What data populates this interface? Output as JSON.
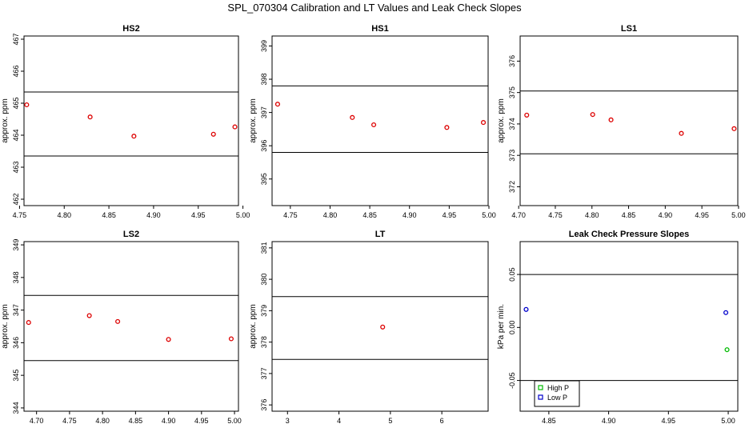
{
  "title": "SPL_070304  Calibration and LT Values and Leak Check Slopes",
  "chart_data": [
    {
      "type": "scatter",
      "title": "HS2",
      "ylabel": "approx. ppm",
      "xlim": [
        4.755,
        4.995
      ],
      "ylim": [
        461.8,
        467.1
      ],
      "xticks": [
        "4.75",
        "4.80",
        "4.85",
        "4.90",
        "4.95",
        "5.00"
      ],
      "xtick_values": [
        4.75,
        4.8,
        4.85,
        4.9,
        4.95,
        5.0
      ],
      "yticks": [
        "462",
        "463",
        "464",
        "465",
        "466",
        "467"
      ],
      "ytick_values": [
        462,
        463,
        464,
        465,
        466,
        467
      ],
      "hlines": [
        465.35,
        463.35
      ],
      "series": [
        {
          "color": "#dd0000",
          "x": [
            4.758,
            4.829,
            4.878,
            4.967,
            4.991
          ],
          "y": [
            464.95,
            464.57,
            463.97,
            464.03,
            464.26
          ]
        }
      ]
    },
    {
      "type": "scatter",
      "title": "HS1",
      "ylabel": "approx. ppm",
      "xlim": [
        4.727,
        4.999
      ],
      "ylim": [
        394.2,
        399.3
      ],
      "xticks": [
        "4.75",
        "4.80",
        "4.85",
        "4.90",
        "4.95",
        "5.00"
      ],
      "xtick_values": [
        4.75,
        4.8,
        4.85,
        4.9,
        4.95,
        5.0
      ],
      "yticks": [
        "395",
        "396",
        "397",
        "398",
        "399"
      ],
      "ytick_values": [
        395,
        396,
        397,
        398,
        399
      ],
      "hlines": [
        397.8,
        395.8
      ],
      "series": [
        {
          "color": "#dd0000",
          "x": [
            4.734,
            4.828,
            4.855,
            4.947,
            4.993
          ],
          "y": [
            397.25,
            396.85,
            396.63,
            396.55,
            396.7
          ]
        }
      ]
    },
    {
      "type": "scatter",
      "title": "LS1",
      "ylabel": "approx. ppm",
      "xlim": [
        4.702,
        4.999
      ],
      "ylim": [
        371.4,
        376.8
      ],
      "xticks": [
        "4.70",
        "4.75",
        "4.80",
        "4.85",
        "4.90",
        "4.95",
        "5.00"
      ],
      "xtick_values": [
        4.7,
        4.75,
        4.8,
        4.85,
        4.9,
        4.95,
        5.0
      ],
      "yticks": [
        "372",
        "373",
        "374",
        "375",
        "376"
      ],
      "ytick_values": [
        372,
        373,
        374,
        375,
        376
      ],
      "hlines": [
        375.05,
        373.05
      ],
      "series": [
        {
          "color": "#dd0000",
          "x": [
            4.711,
            4.801,
            4.826,
            4.922,
            4.994
          ],
          "y": [
            374.28,
            374.3,
            374.13,
            373.7,
            373.85
          ]
        }
      ]
    },
    {
      "type": "scatter",
      "title": "LS2",
      "ylabel": "approx. ppm",
      "xlim": [
        4.681,
        5.006
      ],
      "ylim": [
        343.9,
        349.1
      ],
      "xticks": [
        "4.70",
        "4.75",
        "4.80",
        "4.85",
        "4.90",
        "4.95",
        "5.00"
      ],
      "xtick_values": [
        4.7,
        4.75,
        4.8,
        4.85,
        4.9,
        4.95,
        5.0
      ],
      "yticks": [
        "344",
        "345",
        "346",
        "347",
        "348",
        "349"
      ],
      "ytick_values": [
        344,
        345,
        346,
        347,
        348,
        349
      ],
      "hlines": [
        347.45,
        345.45
      ],
      "series": [
        {
          "color": "#dd0000",
          "x": [
            4.688,
            4.78,
            4.823,
            4.9,
            4.995
          ],
          "y": [
            346.62,
            346.83,
            346.65,
            346.1,
            346.12
          ]
        }
      ]
    },
    {
      "type": "scatter",
      "title": "LT",
      "ylabel": "approx. ppm",
      "xlim": [
        2.7,
        6.9
      ],
      "ylim": [
        375.8,
        381.2
      ],
      "xticks": [
        "3",
        "4",
        "5",
        "6"
      ],
      "xtick_values": [
        3,
        4,
        5,
        6
      ],
      "yticks": [
        "376",
        "377",
        "378",
        "379",
        "380",
        "381"
      ],
      "ytick_values": [
        376,
        377,
        378,
        379,
        380,
        381
      ],
      "hlines": [
        379.45,
        377.45
      ],
      "series": [
        {
          "color": "#dd0000",
          "x": [
            4.85
          ],
          "y": [
            378.48
          ]
        }
      ]
    },
    {
      "type": "scatter",
      "title": "Leak Check Pressure Slopes",
      "ylabel": "kPa per min.",
      "xlim": [
        4.826,
        5.008
      ],
      "ylim": [
        -0.079,
        0.081
      ],
      "xticks": [
        "4.85",
        "4.90",
        "4.95",
        "5.00"
      ],
      "xtick_values": [
        4.85,
        4.9,
        4.95,
        5.0
      ],
      "yticks": [
        "-0.05",
        "0.00",
        "0.05"
      ],
      "ytick_values": [
        -0.05,
        0.0,
        0.05
      ],
      "hlines": [
        0.05,
        -0.05
      ],
      "legend": "bottom-left",
      "series": [
        {
          "name": "High P",
          "color": "#00bb00",
          "x": [
            4.999
          ],
          "y": [
            -0.021
          ]
        },
        {
          "name": "Low P",
          "color": "#0000cc",
          "x": [
            4.831,
            4.998
          ],
          "y": [
            0.017,
            0.014
          ]
        }
      ]
    }
  ]
}
